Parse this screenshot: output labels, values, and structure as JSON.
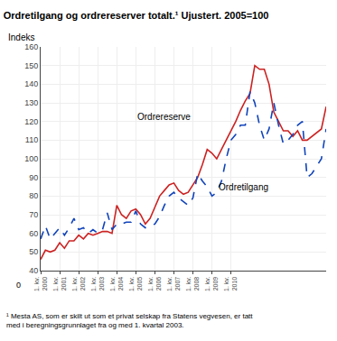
{
  "chart_data": {
    "type": "line",
    "title": "Ordretilgang og ordrereserver totalt.¹ Ujustert. 2005=100",
    "ylabel": "Indeks",
    "axis_break_label": "0",
    "footnote": "¹ Mesta AS, som er skilt ut som et privat selskap fra Statens vegvesen, er tatt\nmed i beregningsgrunnlaget fra og med 1. kvartal 2003.",
    "categories": [
      "1. kv.\n2000",
      null,
      null,
      null,
      "1. kv.\n2001",
      null,
      null,
      null,
      "1. kv.\n2002",
      null,
      null,
      null,
      "1. kv.\n2003",
      null,
      null,
      null,
      "1. kv.\n2004",
      null,
      null,
      null,
      "1. kv.\n2005",
      null,
      null,
      null,
      "1. kv.\n2006",
      null,
      null,
      null,
      "1. kv.\n2007",
      null,
      null,
      null,
      "1. kv.\n2008",
      null,
      null,
      null,
      "1. kv.\n2009",
      null,
      null,
      null,
      "1. kv.\n2010",
      null,
      null,
      null,
      null,
      null,
      null,
      null,
      null,
      null,
      null,
      null,
      null,
      null,
      null,
      null,
      null,
      null,
      null,
      null,
      null
    ],
    "series": [
      {
        "color": "#cc2222",
        "line_style": "solid",
        "values": [
          46,
          51,
          50,
          51,
          55,
          52,
          56,
          56,
          59,
          57,
          60,
          59,
          60,
          61,
          61,
          60,
          75,
          70,
          68,
          72,
          73,
          70,
          65,
          68,
          74,
          80,
          83,
          86,
          87,
          83,
          81,
          82,
          86,
          90,
          97,
          105,
          103,
          100,
          105,
          110,
          115,
          120,
          126,
          131,
          135,
          150,
          148,
          148,
          140,
          125,
          120,
          115,
          115,
          112,
          115,
          110,
          110,
          112,
          114,
          116,
          128
        ]
      },
      {
        "color": "#1144bb",
        "line_style": "dashed",
        "values": [
          57,
          64,
          57,
          60,
          63,
          59,
          63,
          68,
          62,
          63,
          60,
          62,
          60,
          62,
          71,
          62,
          65,
          65,
          66,
          66,
          72,
          65,
          63,
          64,
          65,
          69,
          75,
          80,
          82,
          79,
          77,
          75,
          79,
          92,
          88,
          85,
          80,
          82,
          88,
          100,
          110,
          113,
          118,
          118,
          136,
          130,
          118,
          110,
          116,
          130,
          118,
          108,
          110,
          113,
          118,
          120,
          90,
          92,
          96,
          100,
          116
        ]
      }
    ],
    "annotations": [
      {
        "text": "Ordrereserve",
        "x": 20,
        "y": 119
      },
      {
        "text": "Ordretilgang",
        "x": 37,
        "y": 81
      }
    ],
    "ylim": [
      40,
      160
    ],
    "yticks": [
      40,
      50,
      60,
      70,
      80,
      90,
      100,
      110,
      120,
      130,
      140,
      150,
      160
    ],
    "grid": true
  }
}
